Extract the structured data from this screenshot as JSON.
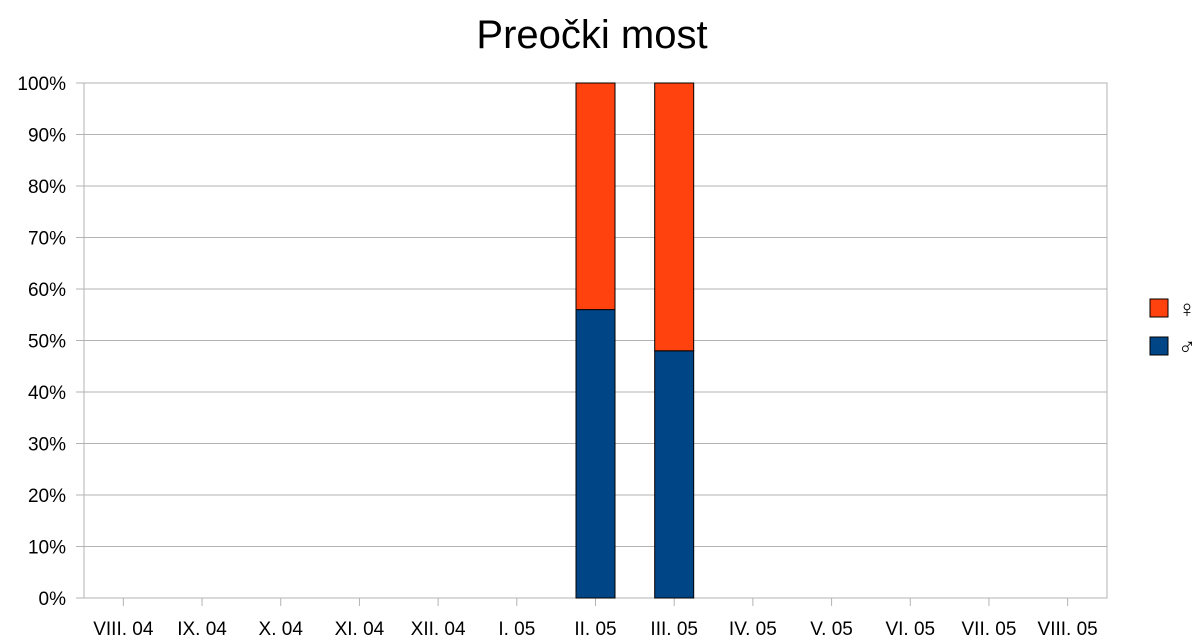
{
  "chart_data": {
    "type": "bar",
    "stacked": true,
    "title": "Preočki most",
    "xlabel": "",
    "ylabel": "",
    "ylim": [
      0,
      100
    ],
    "y_ticks": [
      "0%",
      "10%",
      "20%",
      "30%",
      "40%",
      "50%",
      "60%",
      "70%",
      "80%",
      "90%",
      "100%"
    ],
    "categories": [
      "VIII. 04",
      "IX. 04",
      "X. 04",
      "XI. 04",
      "XII. 04",
      "I. 05",
      "II. 05",
      "III. 05",
      "IV. 05",
      "V. 05",
      "VI. 05",
      "VII. 05",
      "VIII. 05"
    ],
    "series": [
      {
        "name": "♂",
        "color": "#004586",
        "values": [
          null,
          null,
          null,
          null,
          null,
          null,
          56,
          48,
          null,
          null,
          null,
          null,
          null
        ]
      },
      {
        "name": "♀",
        "color": "#ff420e",
        "values": [
          null,
          null,
          null,
          null,
          null,
          null,
          44,
          52,
          null,
          null,
          null,
          null,
          null
        ]
      }
    ],
    "grid": true,
    "legend_position": "right"
  }
}
